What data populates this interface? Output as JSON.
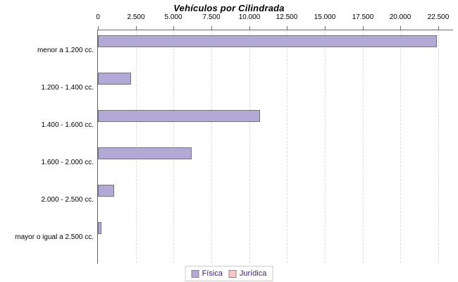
{
  "chart_data": {
    "type": "bar",
    "orientation": "horizontal",
    "title": "Vehículos por Cilindrada",
    "categories": [
      "menor a 1.200 cc.",
      "1.200 - 1.400 cc.",
      "1.400 - 1.600 cc.",
      "1.600 - 2.000 cc.",
      "2.000 - 2.500 cc.",
      "mayor o igual a 2.500 cc."
    ],
    "series": [
      {
        "name": "Física",
        "color": "#b3a9d6",
        "values": [
          22400,
          2200,
          10700,
          6200,
          1050,
          250
        ]
      }
    ],
    "legend": [
      {
        "label": "Física",
        "color": "#b3a9d6"
      },
      {
        "label": "Jurídica",
        "color": "#f9c7c7"
      }
    ],
    "legend_position": "bottom",
    "x_axis": {
      "position": "top",
      "min": 0,
      "max": 22500,
      "tick_interval": 2500,
      "tick_labels": [
        "0",
        "2.500",
        "5.000",
        "7.500",
        "10.000",
        "12.500",
        "15.000",
        "17.500",
        "20.000",
        "22.500"
      ]
    },
    "grid": {
      "vertical_dashed": true
    },
    "colors": {
      "bar_fill": "#b3a9d6",
      "bar_border": "#757575",
      "axis_line": "#6e6e6e",
      "gridline": "#dcdcdc",
      "legend_text": "#3a1d7a",
      "legend_border": "#cccccc",
      "title_text": "#000000"
    }
  }
}
